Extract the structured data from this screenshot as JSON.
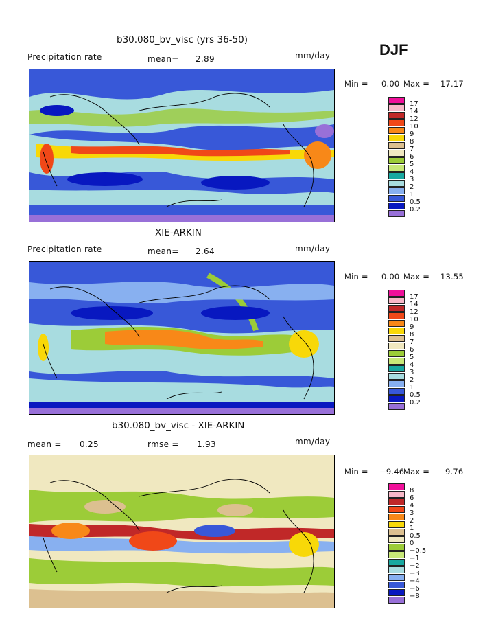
{
  "season": "DJF",
  "panels": [
    {
      "title": "b30.080_bv_visc (yrs 36-50)",
      "left_label": "Precipitation rate",
      "mid_label": "mean=",
      "mid_value": "2.89",
      "right_label": "",
      "right_value": "",
      "units": "mm/day",
      "min_label": "Min =",
      "min_value": "0.00",
      "max_label": "Max =",
      "max_value": "17.17",
      "legend_levels": [
        "17",
        "14",
        "12",
        "10",
        "9",
        "8",
        "7",
        "6",
        "5",
        "4",
        "3",
        "2",
        "1",
        "0.5",
        "0.2"
      ],
      "legend_colors": [
        "#f0109a",
        "#f8b8c8",
        "#c02828",
        "#f04818",
        "#f88818",
        "#f8d808",
        "#dcc090",
        "#f0e8c0",
        "#9ccc38",
        "#c8e878",
        "#18a8a0",
        "#a8dce0",
        "#88b0f0",
        "#3858d8",
        "#0818c0",
        "#9870d8"
      ]
    },
    {
      "title": "XIE-ARKIN",
      "left_label": "Precipitation rate",
      "mid_label": "mean=",
      "mid_value": "2.64",
      "right_label": "",
      "right_value": "",
      "units": "mm/day",
      "min_label": "Min =",
      "min_value": "0.00",
      "max_label": "Max =",
      "max_value": "13.55",
      "legend_levels": [
        "17",
        "14",
        "12",
        "10",
        "9",
        "8",
        "7",
        "6",
        "5",
        "4",
        "3",
        "2",
        "1",
        "0.5",
        "0.2"
      ],
      "legend_colors": [
        "#f0109a",
        "#f8b8c8",
        "#c02828",
        "#f04818",
        "#f88818",
        "#f8d808",
        "#dcc090",
        "#f0e8c0",
        "#9ccc38",
        "#c8e878",
        "#18a8a0",
        "#a8dce0",
        "#88b0f0",
        "#3858d8",
        "#0818c0",
        "#9870d8"
      ]
    },
    {
      "title": "b30.080_bv_visc - XIE-ARKIN",
      "left_label": "mean =",
      "mid_label": "rmse =",
      "mid_value": "1.93",
      "right_label": "",
      "right_value": "0.25",
      "units": "mm/day",
      "min_label": "Min =",
      "min_value": "−9.46",
      "max_label": "Max =",
      "max_value": "9.76",
      "legend_levels": [
        "8",
        "6",
        "4",
        "3",
        "2",
        "1",
        "0.5",
        "0",
        "−0.5",
        "−1",
        "−2",
        "−3",
        "−4",
        "−6",
        "−8"
      ],
      "legend_colors": [
        "#f0109a",
        "#f8b8c8",
        "#c02828",
        "#f04818",
        "#f88818",
        "#f8d808",
        "#dcc090",
        "#f0e8c0",
        "#9ccc38",
        "#c8e878",
        "#18a8a0",
        "#a8dce0",
        "#88b0f0",
        "#3858d8",
        "#0818c0",
        "#9870d8"
      ]
    }
  ]
}
